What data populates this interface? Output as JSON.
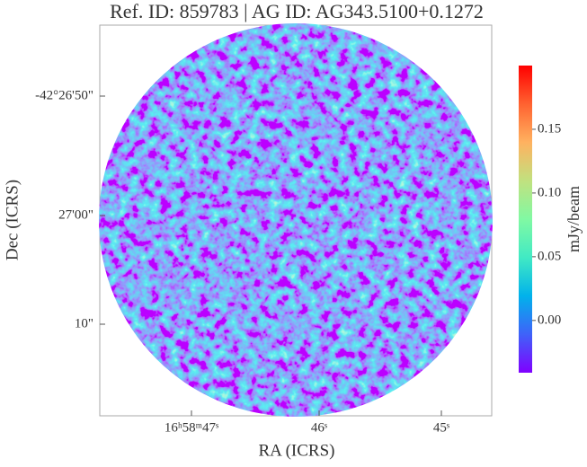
{
  "chart_data": {
    "type": "image",
    "title": "Ref. ID: 859783 | AG ID: AG343.5100+0.1272",
    "xlabel": "RA (ICRS)",
    "ylabel": "Dec (ICRS)",
    "xticklabels": [
      "16ʰ58ᵐ47ˢ",
      "46ˢ",
      "45ˢ"
    ],
    "yticklabels": [
      "-42°26'50\"",
      "27'00\"",
      "10\""
    ],
    "colorbar": {
      "label": "mJy/beam",
      "colormap": [
        "#8000ff",
        "#3f62f9",
        "#01b2eb",
        "#41eac4",
        "#81f9a3",
        "#c1e17f",
        "#ffb260",
        "#ff6230",
        "#ff0000"
      ],
      "lim": [
        -0.041,
        0.2
      ],
      "ticks": [
        {
          "value": 0,
          "label": "0.00"
        },
        {
          "value": 0.05,
          "label": "0.05"
        },
        {
          "value": 0.1,
          "label": "0.10"
        },
        {
          "value": 0.15,
          "label": "0.15"
        }
      ]
    }
  }
}
